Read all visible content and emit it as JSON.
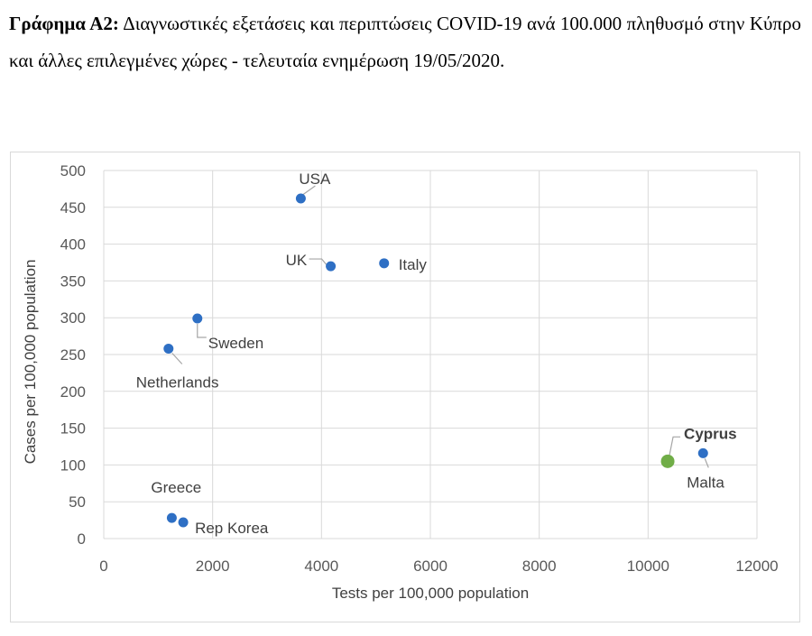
{
  "caption": {
    "lead": "Γράφημα Α2:",
    "text": "Διαγνωστικές εξετάσεις και περιπτώσεις COVID-19 ανά 100.000 πληθυσμό στην Κύπρο και άλλες επιλεγμένες χώρες - τελευταία ενημέρωση 19/05/2020."
  },
  "chart_data": {
    "type": "scatter",
    "title": "",
    "xlabel": "Tests per 100,000 population",
    "ylabel": "Cases per 100,000 population",
    "xlim": [
      0,
      12000
    ],
    "ylim": [
      0,
      500
    ],
    "xticks": [
      0,
      2000,
      4000,
      6000,
      8000,
      10000,
      12000
    ],
    "yticks": [
      0,
      50,
      100,
      150,
      200,
      250,
      300,
      350,
      400,
      450,
      500
    ],
    "grid": true,
    "colors": {
      "default": "#2e6fc4",
      "highlight": "#70ad47"
    },
    "points": [
      {
        "label": "USA",
        "x": 3620,
        "y": 462,
        "highlight": false
      },
      {
        "label": "UK",
        "x": 4170,
        "y": 370,
        "highlight": false
      },
      {
        "label": "Italy",
        "x": 5150,
        "y": 374,
        "highlight": false
      },
      {
        "label": "Sweden",
        "x": 1720,
        "y": 299,
        "highlight": false
      },
      {
        "label": "Netherlands",
        "x": 1190,
        "y": 258,
        "highlight": false
      },
      {
        "label": "Cyprus",
        "x": 10360,
        "y": 105,
        "highlight": true
      },
      {
        "label": "Malta",
        "x": 11010,
        "y": 116,
        "highlight": false
      },
      {
        "label": "Greece",
        "x": 1250,
        "y": 28,
        "highlight": false
      },
      {
        "label": "Rep Korea",
        "x": 1460,
        "y": 22,
        "highlight": false
      }
    ]
  }
}
